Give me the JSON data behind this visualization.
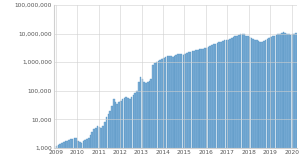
{
  "bar_color": "#7baed6",
  "bar_edge_color": "#4f8fc0",
  "background_color": "#ffffff",
  "grid_color": "#d0d0d0",
  "ylim": [
    1000,
    100000000
  ],
  "xlim_start": 2008.92,
  "xlim_end": 2020.25,
  "yticks": [
    1000,
    10000,
    100000,
    1000000,
    10000000,
    100000000
  ],
  "ytick_labels": [
    "1,000",
    "10,000",
    "100,000",
    "1,000,000",
    "10,000,000",
    "100,000,000"
  ],
  "xtick_years": [
    2009,
    2010,
    2011,
    2012,
    2013,
    2014,
    2015,
    2016,
    2017,
    2018,
    2019,
    2020
  ],
  "monthly_data": [
    1200,
    1300,
    1400,
    1500,
    1600,
    1700,
    1800,
    1900,
    2000,
    2100,
    2200,
    2300,
    1800,
    1600,
    1500,
    1700,
    1900,
    2000,
    2200,
    2800,
    3500,
    4500,
    5000,
    6000,
    5500,
    5000,
    6000,
    8000,
    12000,
    15000,
    20000,
    30000,
    50000,
    40000,
    35000,
    40000,
    45000,
    50000,
    55000,
    60000,
    55000,
    50000,
    60000,
    70000,
    80000,
    100000,
    200000,
    300000,
    250000,
    200000,
    180000,
    200000,
    220000,
    250000,
    800000,
    900000,
    1000000,
    1100000,
    1200000,
    1300000,
    1400000,
    1500000,
    1600000,
    1700000,
    1600000,
    1500000,
    1700000,
    1800000,
    1900000,
    2000000,
    1900000,
    1800000,
    2000000,
    2100000,
    2200000,
    2300000,
    2400000,
    2500000,
    2600000,
    2700000,
    2800000,
    2900000,
    3000000,
    3100000,
    3200000,
    3500000,
    3800000,
    4000000,
    4200000,
    4500000,
    4800000,
    5000000,
    5200000,
    5500000,
    5800000,
    6000000,
    6200000,
    6500000,
    7000000,
    7500000,
    8000000,
    8500000,
    9000000,
    9500000,
    10000000,
    9500000,
    8500000,
    8000000,
    7500000,
    7000000,
    6500000,
    6000000,
    5800000,
    5500000,
    5200000,
    5000000,
    5500000,
    6000000,
    6500000,
    7000000,
    7500000,
    8000000,
    8500000,
    9000000,
    9500000,
    10000000,
    10500000,
    11000000,
    10500000,
    10000000,
    9500000,
    9000000,
    9500000,
    10000000,
    10500000,
    9000000
  ]
}
